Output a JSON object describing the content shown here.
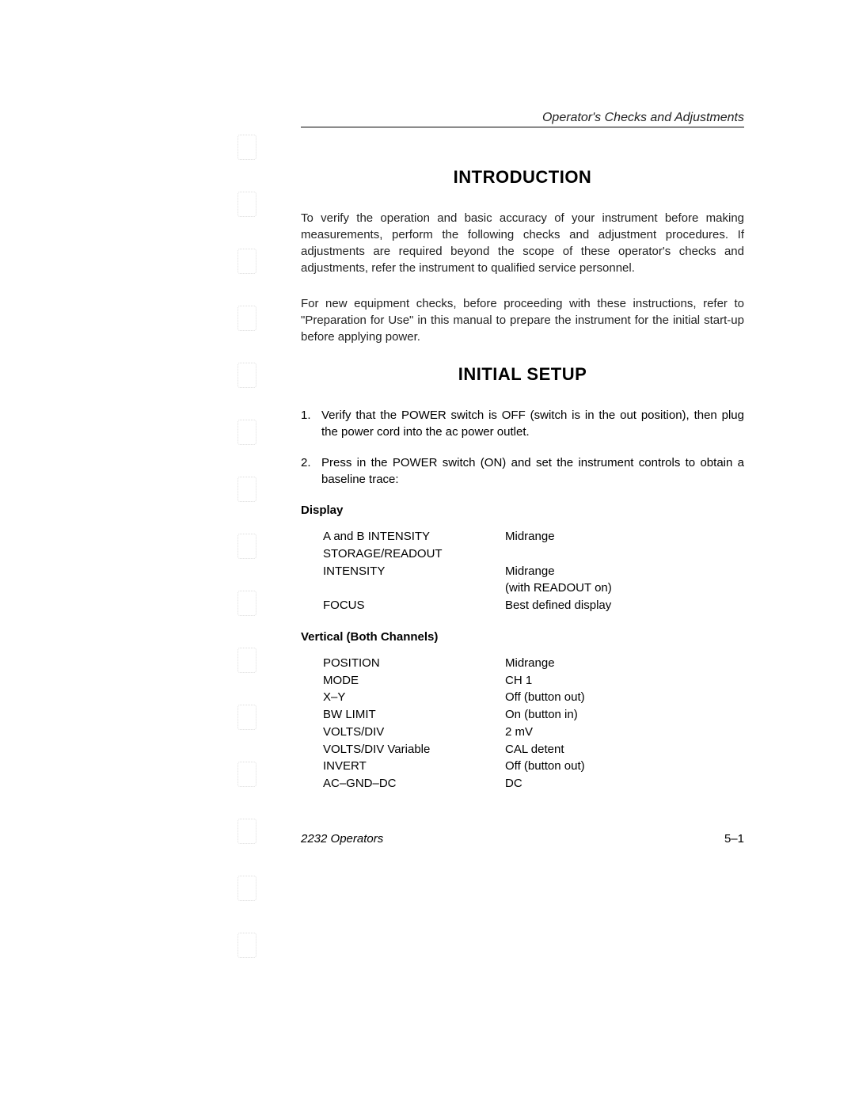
{
  "header": {
    "section_title": "Operator's Checks and Adjustments"
  },
  "headings": {
    "introduction": "INTRODUCTION",
    "initial_setup": "INITIAL SETUP"
  },
  "intro_paragraphs": [
    "To verify the operation and basic accuracy of your instrument before making measurements, perform the following checks and adjustment procedures. If adjustments are required beyond the scope of these operator's checks and adjustments, refer the instrument to qualified service personnel.",
    "For new equipment checks, before proceeding with these instructions, refer to \"Preparation for Use\" in this manual to prepare the instrument for the initial start-up before applying power."
  ],
  "steps": [
    {
      "num": "1.",
      "text": "Verify that the POWER switch is OFF (switch is in the out position), then plug the power cord into the ac power outlet."
    },
    {
      "num": "2.",
      "text": "Press in the POWER switch (ON) and set the instrument controls to obtain a baseline trace:"
    }
  ],
  "sections": {
    "display": {
      "title": "Display",
      "rows": [
        {
          "label": "A and B INTENSITY",
          "value": "Midrange"
        },
        {
          "label": "STORAGE/READOUT",
          "value": ""
        },
        {
          "label": "INTENSITY",
          "value": "Midrange"
        },
        {
          "label": "",
          "value": "(with READOUT on)"
        },
        {
          "label": "FOCUS",
          "value": "Best defined display"
        }
      ]
    },
    "vertical": {
      "title": "Vertical (Both Channels)",
      "rows": [
        {
          "label": "POSITION",
          "value": "Midrange"
        },
        {
          "label": "MODE",
          "value": "CH 1"
        },
        {
          "label": "X–Y",
          "value": "Off (button out)"
        },
        {
          "label": "BW LIMIT",
          "value": "On (button in)"
        },
        {
          "label": "VOLTS/DIV",
          "value": "2 mV"
        },
        {
          "label": "VOLTS/DIV Variable",
          "value": "CAL detent"
        },
        {
          "label": "INVERT",
          "value": "Off (button out)"
        },
        {
          "label": "AC–GND–DC",
          "value": "DC"
        }
      ]
    }
  },
  "footer": {
    "left": "2232 Operators",
    "right": "5–1"
  },
  "style": {
    "page_background": "#ffffff",
    "text_color": "#222222",
    "heading_color": "#000000",
    "rule_color": "#000000",
    "body_fontsize": 15,
    "heading_fontsize": 22,
    "font_family": "Arial, Helvetica, sans-serif"
  }
}
